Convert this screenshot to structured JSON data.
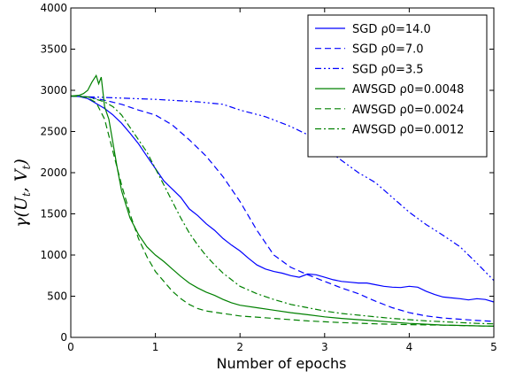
{
  "chart_data": {
    "type": "line",
    "xlabel": "Number of epochs",
    "ylabel": "γ(U_t, V_t)",
    "xlim": [
      0,
      5
    ],
    "ylim": [
      0,
      4000
    ],
    "x_ticks": [
      "0",
      "1",
      "2",
      "3",
      "4",
      "5"
    ],
    "y_ticks": [
      "0",
      "500",
      "1000",
      "1500",
      "2000",
      "2500",
      "3000",
      "3500",
      "4000"
    ],
    "grid": false,
    "legend_position": "top-right",
    "series": [
      {
        "name": "SGD ρ0=14.0",
        "color": "#0000ff",
        "style": "solid",
        "points": [
          [
            0,
            2930
          ],
          [
            0.1,
            2925
          ],
          [
            0.2,
            2900
          ],
          [
            0.3,
            2840
          ],
          [
            0.4,
            2780
          ],
          [
            0.5,
            2700
          ],
          [
            0.6,
            2600
          ],
          [
            0.7,
            2480
          ],
          [
            0.8,
            2350
          ],
          [
            0.9,
            2200
          ],
          [
            1.0,
            2050
          ],
          [
            1.1,
            1900
          ],
          [
            1.2,
            1800
          ],
          [
            1.3,
            1700
          ],
          [
            1.4,
            1560
          ],
          [
            1.5,
            1480
          ],
          [
            1.6,
            1380
          ],
          [
            1.7,
            1300
          ],
          [
            1.8,
            1200
          ],
          [
            1.9,
            1120
          ],
          [
            2.0,
            1050
          ],
          [
            2.1,
            960
          ],
          [
            2.2,
            880
          ],
          [
            2.3,
            830
          ],
          [
            2.4,
            800
          ],
          [
            2.5,
            780
          ],
          [
            2.6,
            750
          ],
          [
            2.7,
            730
          ],
          [
            2.8,
            770
          ],
          [
            2.9,
            760
          ],
          [
            3.0,
            730
          ],
          [
            3.1,
            700
          ],
          [
            3.2,
            680
          ],
          [
            3.3,
            670
          ],
          [
            3.4,
            660
          ],
          [
            3.5,
            660
          ],
          [
            3.6,
            640
          ],
          [
            3.7,
            620
          ],
          [
            3.8,
            610
          ],
          [
            3.9,
            605
          ],
          [
            4.0,
            620
          ],
          [
            4.1,
            610
          ],
          [
            4.2,
            560
          ],
          [
            4.3,
            520
          ],
          [
            4.4,
            490
          ],
          [
            4.5,
            480
          ],
          [
            4.6,
            470
          ],
          [
            4.7,
            455
          ],
          [
            4.8,
            470
          ],
          [
            4.9,
            460
          ],
          [
            5.0,
            430
          ]
        ]
      },
      {
        "name": "SGD ρ0=7.0",
        "color": "#0000ff",
        "style": "dashed",
        "points": [
          [
            0,
            2930
          ],
          [
            0.2,
            2920
          ],
          [
            0.4,
            2880
          ],
          [
            0.6,
            2830
          ],
          [
            0.8,
            2760
          ],
          [
            1.0,
            2700
          ],
          [
            1.2,
            2580
          ],
          [
            1.4,
            2400
          ],
          [
            1.6,
            2200
          ],
          [
            1.8,
            1950
          ],
          [
            2.0,
            1650
          ],
          [
            2.2,
            1300
          ],
          [
            2.4,
            1000
          ],
          [
            2.6,
            850
          ],
          [
            2.8,
            760
          ],
          [
            3.0,
            680
          ],
          [
            3.2,
            600
          ],
          [
            3.4,
            530
          ],
          [
            3.6,
            440
          ],
          [
            3.8,
            360
          ],
          [
            4.0,
            300
          ],
          [
            4.2,
            260
          ],
          [
            4.4,
            235
          ],
          [
            4.6,
            220
          ],
          [
            4.8,
            205
          ],
          [
            5.0,
            195
          ]
        ]
      },
      {
        "name": "SGD ρ0=3.5",
        "color": "#0000ff",
        "style": "dashdotdot",
        "points": [
          [
            0,
            2930
          ],
          [
            0.5,
            2910
          ],
          [
            1.0,
            2890
          ],
          [
            1.5,
            2860
          ],
          [
            1.8,
            2830
          ],
          [
            2.0,
            2760
          ],
          [
            2.3,
            2680
          ],
          [
            2.6,
            2560
          ],
          [
            2.8,
            2460
          ],
          [
            3.0,
            2300
          ],
          [
            3.2,
            2150
          ],
          [
            3.4,
            2000
          ],
          [
            3.6,
            1880
          ],
          [
            3.8,
            1700
          ],
          [
            4.0,
            1520
          ],
          [
            4.2,
            1370
          ],
          [
            4.4,
            1240
          ],
          [
            4.6,
            1100
          ],
          [
            4.8,
            900
          ],
          [
            5.0,
            690
          ]
        ]
      },
      {
        "name": "AWSGD ρ0=0.0048",
        "color": "#008000",
        "style": "solid",
        "points": [
          [
            0,
            2930
          ],
          [
            0.1,
            2940
          ],
          [
            0.15,
            2960
          ],
          [
            0.2,
            3000
          ],
          [
            0.25,
            3100
          ],
          [
            0.3,
            3180
          ],
          [
            0.33,
            3080
          ],
          [
            0.36,
            3160
          ],
          [
            0.4,
            2800
          ],
          [
            0.45,
            2650
          ],
          [
            0.5,
            2350
          ],
          [
            0.55,
            2050
          ],
          [
            0.6,
            1780
          ],
          [
            0.7,
            1450
          ],
          [
            0.8,
            1250
          ],
          [
            0.9,
            1100
          ],
          [
            1.0,
            1000
          ],
          [
            1.1,
            920
          ],
          [
            1.2,
            830
          ],
          [
            1.3,
            740
          ],
          [
            1.4,
            660
          ],
          [
            1.5,
            600
          ],
          [
            1.6,
            550
          ],
          [
            1.7,
            510
          ],
          [
            1.8,
            460
          ],
          [
            1.9,
            420
          ],
          [
            2.0,
            390
          ],
          [
            2.2,
            360
          ],
          [
            2.4,
            330
          ],
          [
            2.6,
            300
          ],
          [
            2.8,
            275
          ],
          [
            3.0,
            250
          ],
          [
            3.2,
            230
          ],
          [
            3.4,
            215
          ],
          [
            3.6,
            200
          ],
          [
            3.8,
            185
          ],
          [
            4.0,
            170
          ],
          [
            4.2,
            160
          ],
          [
            4.4,
            150
          ],
          [
            4.6,
            145
          ],
          [
            4.8,
            140
          ],
          [
            5.0,
            135
          ]
        ]
      },
      {
        "name": "AWSGD ρ0=0.0024",
        "color": "#008000",
        "style": "dashed",
        "points": [
          [
            0,
            2930
          ],
          [
            0.1,
            2930
          ],
          [
            0.2,
            2910
          ],
          [
            0.3,
            2850
          ],
          [
            0.4,
            2650
          ],
          [
            0.5,
            2250
          ],
          [
            0.6,
            1850
          ],
          [
            0.7,
            1500
          ],
          [
            0.8,
            1200
          ],
          [
            0.9,
            980
          ],
          [
            1.0,
            800
          ],
          [
            1.1,
            680
          ],
          [
            1.2,
            560
          ],
          [
            1.3,
            470
          ],
          [
            1.4,
            400
          ],
          [
            1.5,
            350
          ],
          [
            1.6,
            320
          ],
          [
            1.8,
            290
          ],
          [
            2.0,
            260
          ],
          [
            2.4,
            230
          ],
          [
            2.8,
            200
          ],
          [
            3.2,
            180
          ],
          [
            3.6,
            165
          ],
          [
            4.0,
            155
          ],
          [
            4.4,
            148
          ],
          [
            4.8,
            140
          ],
          [
            5.0,
            135
          ]
        ]
      },
      {
        "name": "AWSGD ρ0=0.0012",
        "color": "#008000",
        "style": "dashdot",
        "points": [
          [
            0,
            2930
          ],
          [
            0.2,
            2920
          ],
          [
            0.4,
            2860
          ],
          [
            0.5,
            2800
          ],
          [
            0.6,
            2700
          ],
          [
            0.7,
            2550
          ],
          [
            0.8,
            2400
          ],
          [
            0.9,
            2250
          ],
          [
            1.0,
            2050
          ],
          [
            1.1,
            1850
          ],
          [
            1.2,
            1650
          ],
          [
            1.3,
            1450
          ],
          [
            1.4,
            1270
          ],
          [
            1.5,
            1120
          ],
          [
            1.6,
            990
          ],
          [
            1.7,
            880
          ],
          [
            1.8,
            780
          ],
          [
            1.9,
            700
          ],
          [
            2.0,
            620
          ],
          [
            2.2,
            530
          ],
          [
            2.4,
            460
          ],
          [
            2.6,
            400
          ],
          [
            2.8,
            360
          ],
          [
            3.0,
            320
          ],
          [
            3.2,
            290
          ],
          [
            3.4,
            270
          ],
          [
            3.6,
            250
          ],
          [
            3.8,
            230
          ],
          [
            4.0,
            215
          ],
          [
            4.2,
            200
          ],
          [
            4.4,
            190
          ],
          [
            4.6,
            180
          ],
          [
            4.8,
            170
          ],
          [
            5.0,
            165
          ]
        ]
      }
    ]
  }
}
